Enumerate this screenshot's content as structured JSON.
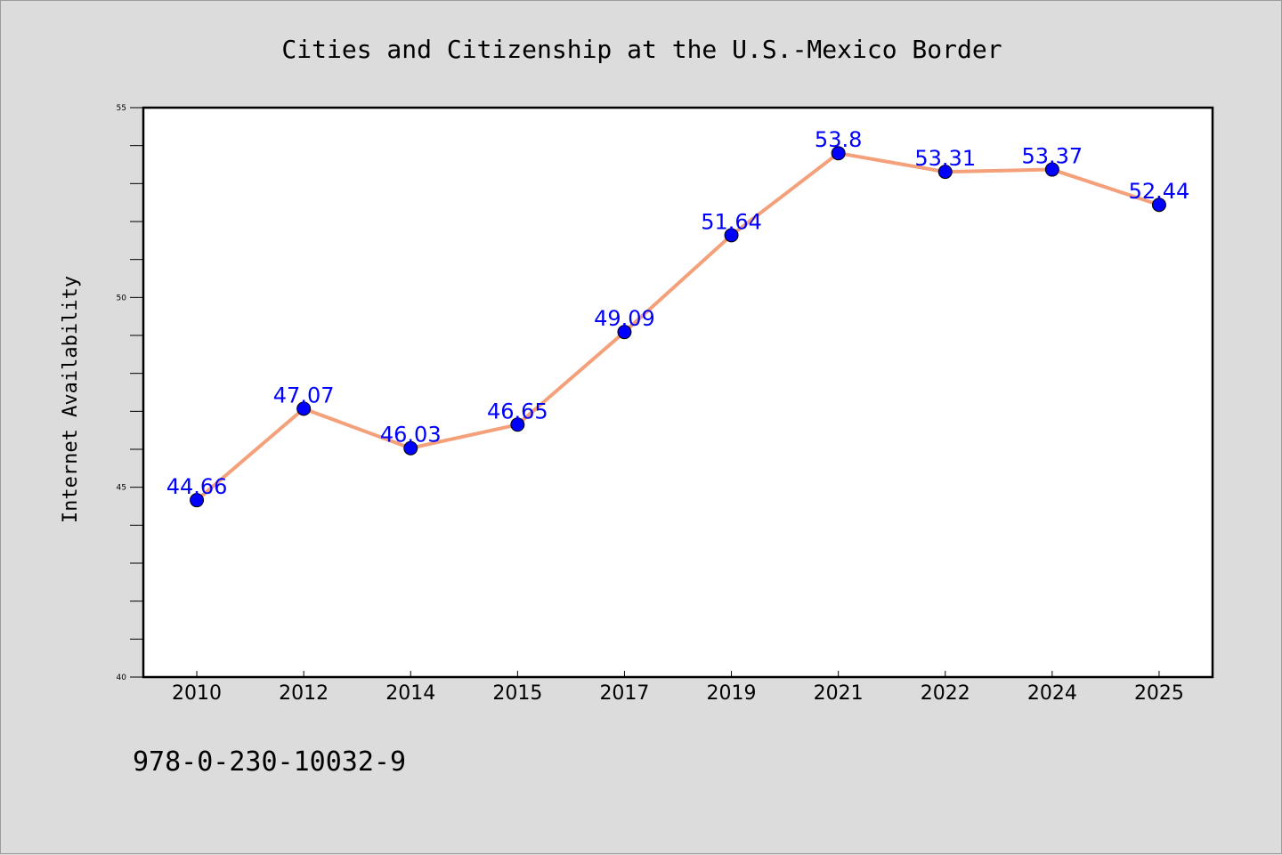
{
  "chart_data": {
    "type": "line",
    "title": "Cities and Citizenship at the U.S.-Mexico Border",
    "ylabel": "Internet Availability",
    "xlabel": "",
    "categories": [
      "2010",
      "2012",
      "2014",
      "2015",
      "2017",
      "2019",
      "2021",
      "2022",
      "2024",
      "2025"
    ],
    "values": [
      44.66,
      47.07,
      46.03,
      46.65,
      49.09,
      51.64,
      53.8,
      53.31,
      53.37,
      52.44
    ],
    "data_labels": [
      "44.66",
      "47.07",
      "46.03",
      "46.65",
      "49.09",
      "51.64",
      "53.8",
      "53.31",
      "53.37",
      "52.44"
    ],
    "ylim": [
      40,
      55
    ],
    "yticks": [
      "40",
      "45",
      "50",
      "55"
    ],
    "grid": false,
    "legend": "none",
    "line_color": "#f4a07a",
    "marker_color": "#0000ff",
    "label_color": "#0000ff"
  },
  "footer": {
    "isbn": "978-0-230-10032-9"
  }
}
